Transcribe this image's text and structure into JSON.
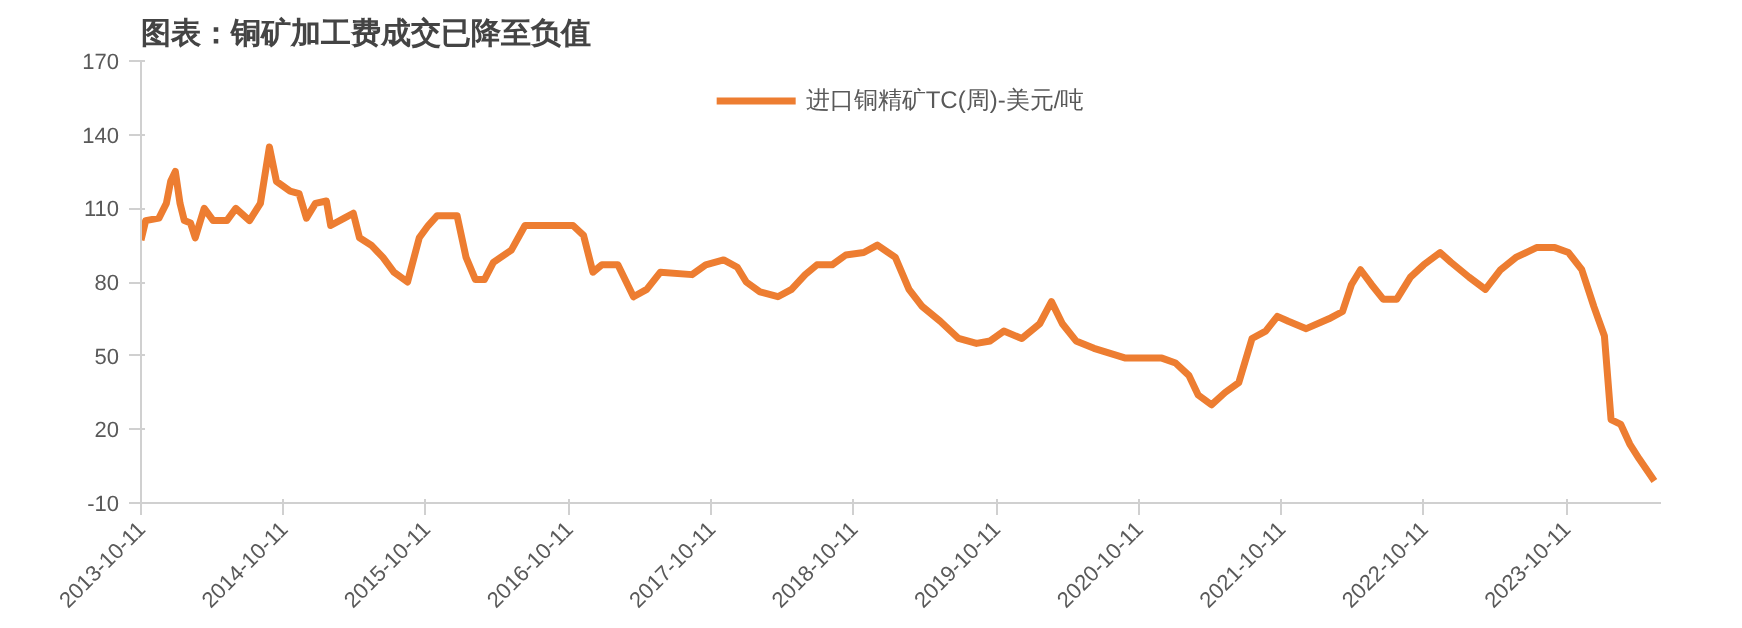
{
  "chart_data": {
    "type": "line",
    "title": "图表：铜矿加工费成交已降至负值",
    "x": [
      "2013-10-11",
      "2013-10-23",
      "2013-11-26",
      "2013-12-15",
      "2013-12-26",
      "2014-01-07",
      "2014-01-19",
      "2014-01-30",
      "2014-02-15",
      "2014-02-27",
      "2014-03-22",
      "2014-04-14",
      "2014-05-19",
      "2014-06-11",
      "2014-07-16",
      "2014-08-13",
      "2014-09-05",
      "2014-09-23",
      "2014-10-28",
      "2014-11-20",
      "2014-12-09",
      "2015-01-01",
      "2015-01-29",
      "2015-02-09",
      "2015-03-16",
      "2015-04-08",
      "2015-04-24",
      "2015-05-24",
      "2015-06-23",
      "2015-07-21",
      "2015-08-25",
      "2015-09-24",
      "2015-10-17",
      "2015-11-09",
      "2015-12-30",
      "2016-01-22",
      "2016-02-15",
      "2016-03-09",
      "2016-04-01",
      "2016-05-17",
      "2016-06-21",
      "2016-08-18",
      "2016-10-22",
      "2016-11-18",
      "2016-12-12",
      "2017-01-04",
      "2017-02-14",
      "2017-03-26",
      "2017-04-29",
      "2017-06-03",
      "2017-08-23",
      "2017-09-27",
      "2017-11-12",
      "2017-12-17",
      "2018-01-09",
      "2018-02-13",
      "2018-03-31",
      "2018-05-05",
      "2018-06-09",
      "2018-07-09",
      "2018-08-17",
      "2018-09-21",
      "2018-11-06",
      "2018-12-11",
      "2019-01-26",
      "2019-03-02",
      "2019-04-05",
      "2019-05-21",
      "2019-07-07",
      "2019-08-22",
      "2019-09-26",
      "2019-10-31",
      "2019-12-16",
      "2020-01-31",
      "2020-03-01",
      "2020-03-29",
      "2020-05-03",
      "2020-06-18",
      "2020-09-07",
      "2020-12-09",
      "2021-01-13",
      "2021-02-16",
      "2021-03-12",
      "2021-04-15",
      "2021-05-20",
      "2021-06-24",
      "2021-07-28",
      "2021-09-01",
      "2021-10-01",
      "2021-10-29",
      "2021-12-14",
      "2022-02-10",
      "2022-03-17",
      "2022-04-09",
      "2022-05-02",
      "2022-05-30",
      "2022-06-29",
      "2022-08-03",
      "2022-09-07",
      "2022-10-11",
      "2022-11-22",
      "2022-12-20",
      "2023-02-04",
      "2023-03-18",
      "2023-04-26",
      "2023-06-04",
      "2023-07-27",
      "2023-09-12",
      "2023-10-17",
      "2023-11-20",
      "2023-12-21",
      "2024-01-17",
      "2024-02-03",
      "2024-02-28",
      "2024-03-22",
      "2024-04-15",
      "2024-05-24"
    ],
    "series": [
      {
        "name": "进口铜精矿TC(周)-美元/吨",
        "color": "#ed7d31",
        "values": [
          97,
          105,
          106,
          112,
          121,
          125,
          112,
          105,
          104,
          98,
          110,
          105,
          105,
          110,
          105,
          112,
          135,
          121,
          117,
          116,
          106,
          112,
          113,
          103,
          106,
          108,
          98,
          95,
          90,
          84,
          80,
          98,
          103,
          107,
          107,
          90,
          81,
          81,
          88,
          93,
          103,
          103,
          103,
          99,
          84,
          87,
          87,
          74,
          77,
          84,
          83,
          87,
          89,
          86,
          80,
          76,
          74,
          77,
          83,
          87,
          87,
          91,
          92,
          95,
          90,
          77,
          70,
          64,
          57,
          55,
          56,
          60,
          57,
          63,
          72,
          63,
          56,
          53,
          49,
          49,
          47,
          42,
          34,
          30,
          35,
          39,
          57,
          60,
          66,
          64,
          61,
          65,
          68,
          79,
          85,
          79,
          73,
          73,
          82,
          87,
          92,
          88,
          82,
          77,
          85,
          90,
          94,
          94,
          92,
          85,
          70,
          58,
          24,
          22,
          14,
          8,
          -1
        ]
      }
    ],
    "xlim": [
      "2013-10-11",
      "2024-06-10"
    ],
    "xticks": [
      "2013-10-11",
      "2014-10-11",
      "2015-10-11",
      "2016-10-11",
      "2017-10-11",
      "2018-10-11",
      "2019-10-11",
      "2020-10-11",
      "2021-10-11",
      "2022-10-11",
      "2023-10-11"
    ],
    "ylim": [
      -10,
      170
    ],
    "yticks": [
      -10,
      20,
      50,
      80,
      110,
      140,
      170
    ],
    "grid": false,
    "legend": "top",
    "line_style": "solid",
    "marker": "none"
  }
}
